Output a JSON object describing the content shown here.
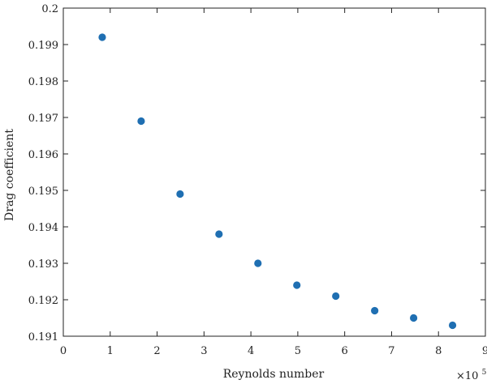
{
  "chart_data": {
    "type": "scatter",
    "title": "",
    "xlabel": "Reynolds number",
    "ylabel": "Drag coefficient",
    "x_multiplier": {
      "base": "×10",
      "exponent": "5"
    },
    "xlim": [
      0,
      9
    ],
    "ylim": [
      0.191,
      0.2
    ],
    "x_ticks": [
      0,
      1,
      2,
      3,
      4,
      5,
      6,
      7,
      8,
      9
    ],
    "x_tick_labels": [
      "0",
      "1",
      "2",
      "3",
      "4",
      "5",
      "6",
      "7",
      "8",
      "9"
    ],
    "y_ticks": [
      0.191,
      0.192,
      0.193,
      0.194,
      0.195,
      0.196,
      0.197,
      0.198,
      0.199,
      0.2
    ],
    "y_tick_labels": [
      "0.191",
      "0.192",
      "0.193",
      "0.194",
      "0.195",
      "0.196",
      "0.197",
      "0.198",
      "0.199",
      "0.2"
    ],
    "grid": false,
    "marker_color": "#1f6fb2",
    "series": [
      {
        "x": [
          0.83,
          1.66,
          2.49,
          3.32,
          4.15,
          4.98,
          5.81,
          6.64,
          7.47,
          8.3
        ],
        "y": [
          0.1992,
          0.1969,
          0.1949,
          0.1938,
          0.193,
          0.1924,
          0.1921,
          0.1917,
          0.1915,
          0.1913
        ]
      }
    ]
  }
}
